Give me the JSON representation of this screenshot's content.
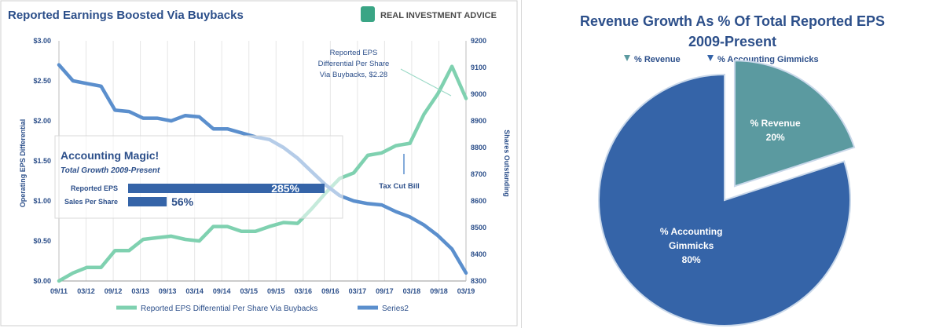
{
  "chart_data": [
    {
      "type": "line",
      "title": "Reported Earnings Boosted Via Buybacks",
      "ylabel": "Operating EPS Differential",
      "y2label": "Shares Outstanding",
      "ylim": [
        0,
        3.0
      ],
      "y2lim": [
        8300,
        9200
      ],
      "y_ticks": [
        "$0.00",
        "$0.50",
        "$1.00",
        "$1.50",
        "$2.00",
        "$2.50",
        "$3.00"
      ],
      "y2_ticks": [
        "8300",
        "8400",
        "8500",
        "8600",
        "8700",
        "8800",
        "8900",
        "9000",
        "9100",
        "9200"
      ],
      "x_ticks": [
        "09/11",
        "03/12",
        "09/12",
        "03/13",
        "09/13",
        "03/14",
        "09/14",
        "03/15",
        "09/15",
        "03/16",
        "09/16",
        "03/17",
        "09/17",
        "03/18",
        "09/18",
        "03/19"
      ],
      "legend_position": "bottom",
      "series": [
        {
          "name": "Reported EPS Differential Per Share Via Buybacks",
          "axis": "left",
          "color": "#7fd1b0",
          "values": [
            0.0,
            0.1,
            0.17,
            0.17,
            0.38,
            0.38,
            0.52,
            0.54,
            0.56,
            0.52,
            0.5,
            0.68,
            0.68,
            0.62,
            0.62,
            0.68,
            0.73,
            0.72,
            0.9,
            1.1,
            1.28,
            1.35,
            1.57,
            1.6,
            1.69,
            1.72,
            2.08,
            2.34,
            2.68,
            2.28
          ]
        },
        {
          "name": "Series2",
          "axis": "right",
          "color": "#5b8fcd",
          "values": [
            9110,
            9050,
            9040,
            9030,
            8940,
            8935,
            8910,
            8910,
            8900,
            8920,
            8915,
            8870,
            8870,
            8855,
            8840,
            8830,
            8800,
            8760,
            8710,
            8660,
            8620,
            8600,
            8590,
            8585,
            8560,
            8540,
            8510,
            8470,
            8420,
            8330
          ]
        }
      ],
      "annotations": {
        "box_title": "Accounting Magic!",
        "box_subtitle": "Total Growth 2009-Present",
        "bars": [
          {
            "label": "Reported EPS",
            "value": "285%",
            "pct": 285
          },
          {
            "label": "Sales Per Share",
            "value": "56%",
            "pct": 56
          }
        ],
        "callout": "Reported EPS\nDifferential Per Share\nVia Buybacks,  $2.28",
        "tax_note": "Tax Cut Bill"
      },
      "logo_text": "REAL INVESTMENT ADVICE"
    },
    {
      "type": "pie",
      "title": "Revenue Growth As % Of Total Reported EPS",
      "subtitle": "2009-Present",
      "legend_position": "top",
      "slices": [
        {
          "label": "% Revenue",
          "value": 20,
          "display": "20%",
          "color": "#5b9aa0"
        },
        {
          "label": "% Accounting Gimmicks",
          "value": 80,
          "display": "80%",
          "color": "#3564a8"
        }
      ]
    }
  ]
}
